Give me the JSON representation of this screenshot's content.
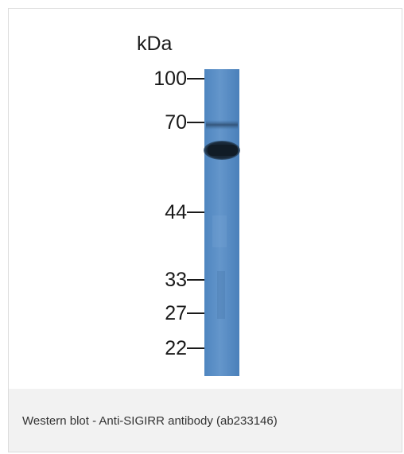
{
  "figure": {
    "unit_label": "kDa",
    "markers": [
      "100",
      "70",
      "44",
      "33",
      "27",
      "22"
    ],
    "caption": "Western blot - Anti-SIGIRR antibody (ab233146)"
  },
  "colors": {
    "lane_background": "#5b8fc5",
    "band_color": "#15222f",
    "caption_background": "#f2f2f2",
    "caption_text": "#333333"
  }
}
